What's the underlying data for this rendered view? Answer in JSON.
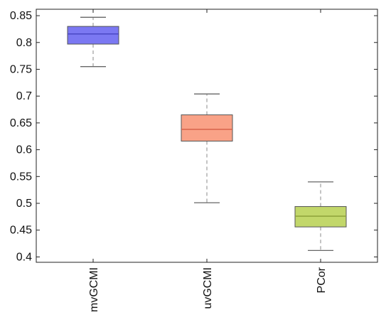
{
  "chart_data": {
    "type": "box",
    "title": "",
    "xlabel": "",
    "ylabel": "",
    "ylim": [
      0.39,
      0.862
    ],
    "yticks": [
      0.4,
      0.45,
      0.5,
      0.55,
      0.6,
      0.65,
      0.7,
      0.75,
      0.8,
      0.85
    ],
    "ytick_labels": [
      "0.4",
      "0.45",
      "0.5",
      "0.55",
      "0.6",
      "0.65",
      "0.7",
      "0.75",
      "0.8",
      "0.85"
    ],
    "grid": false,
    "categories": [
      "mvGCMI",
      "uvGCMI",
      "PCor"
    ],
    "boxes": [
      {
        "category": "mvGCMI",
        "whisker_low": 0.755,
        "q1": 0.797,
        "median": 0.816,
        "q3": 0.83,
        "whisker_high": 0.847,
        "fill": "#7b78f2",
        "stroke": "#4a47c4"
      },
      {
        "category": "uvGCMI",
        "whisker_low": 0.501,
        "q1": 0.616,
        "median": 0.638,
        "q3": 0.665,
        "whisker_high": 0.704,
        "fill": "#f9a287",
        "stroke": "#d8624a"
      },
      {
        "category": "PCor",
        "whisker_low": 0.412,
        "q1": 0.456,
        "median": 0.476,
        "q3": 0.494,
        "whisker_high": 0.54,
        "fill": "#c2d76a",
        "stroke": "#8ea33a"
      }
    ]
  }
}
